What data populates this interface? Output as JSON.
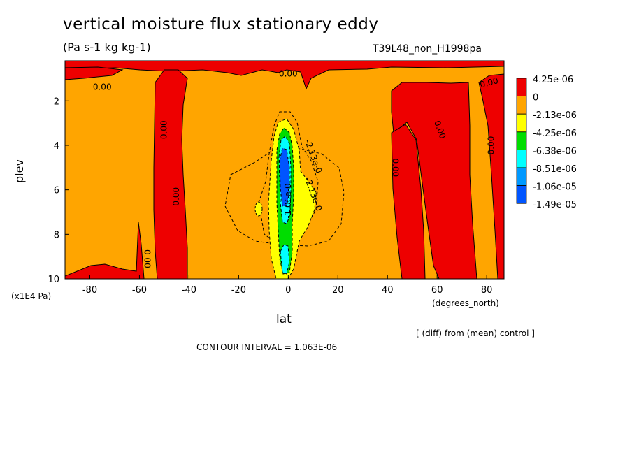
{
  "chart_data": {
    "type": "heatmap",
    "title": "vertical moisture flux stationary eddy",
    "subtitle": "(Pa s-1 kg kg-1)",
    "run_label": "T39L48_non_H1998pa",
    "xlabel": "lat",
    "x_units": "(degrees_north)",
    "ylabel": "plev",
    "y_units": "(x1E4 Pa)",
    "xlim": [
      -90,
      87
    ],
    "ylim": [
      10,
      0.2
    ],
    "x_ticks": [
      {
        "value": -80,
        "label": "-80"
      },
      {
        "value": -60,
        "label": "-60"
      },
      {
        "value": -40,
        "label": "-40"
      },
      {
        "value": -20,
        "label": "-20"
      },
      {
        "value": 0,
        "label": "0"
      },
      {
        "value": 20,
        "label": "20"
      },
      {
        "value": 40,
        "label": "40"
      },
      {
        "value": 60,
        "label": "60"
      },
      {
        "value": 80,
        "label": "80"
      }
    ],
    "y_ticks": [
      {
        "value": 2,
        "label": "2"
      },
      {
        "value": 4,
        "label": "4"
      },
      {
        "value": 6,
        "label": "6"
      },
      {
        "value": 8,
        "label": "8"
      },
      {
        "value": 10,
        "label": "10"
      }
    ],
    "legend": {
      "position": "right",
      "levels": [
        {
          "label": "4.25e-06",
          "color": "#ee0000"
        },
        {
          "label": "0",
          "color": "#ffa500"
        },
        {
          "label": "-2.13e-06",
          "color": "#ffff00"
        },
        {
          "label": "-4.25e-06",
          "color": "#00dd00"
        },
        {
          "label": "-6.38e-06",
          "color": "#00ffff"
        },
        {
          "label": "-8.51e-06",
          "color": "#0099ff"
        },
        {
          "label": "-1.06e-05",
          "color": "#0055ff"
        },
        {
          "label": "-1.49e-05",
          "color": ""
        }
      ]
    },
    "contour_labels": [
      "0.00",
      "0.00",
      "0.00",
      "0.00",
      "0.00",
      "0.00",
      "0.00",
      "0.00",
      "0.00",
      "-2.13e-0",
      "-2.13e-0",
      "-1.06e-0"
    ],
    "difference_note": "[ (diff) from (mean) control ]",
    "contour_interval": "CONTOUR INTERVAL = 1.063E-06"
  },
  "colors": {
    "positive": "#ee0000",
    "zero_band": "#ffa500",
    "neg1": "#ffff00",
    "neg2": "#00dd00",
    "neg3": "#00ffff",
    "neg4": "#0099ff",
    "neg5": "#0055ff"
  }
}
